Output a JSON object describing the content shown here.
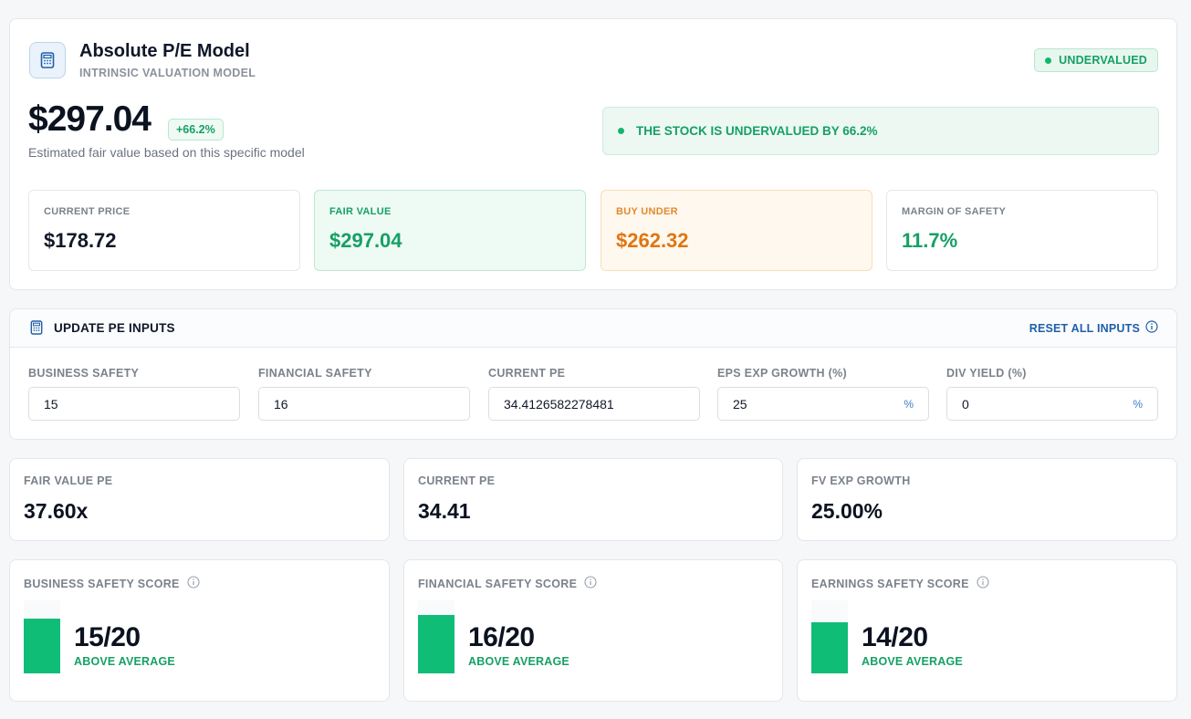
{
  "model": {
    "title": "Absolute P/E Model",
    "subtitle": "INTRINSIC VALUATION MODEL",
    "status": "UNDERVALUED",
    "fair_value": "$297.04",
    "change_pct": "+66.2%",
    "caption": "Estimated fair value based on this specific model",
    "verdict": "THE STOCK IS UNDERVALUED BY 66.2%",
    "icon": "calculator-icon"
  },
  "metrics": {
    "current_price": {
      "label": "CURRENT PRICE",
      "value": "$178.72"
    },
    "fair_value": {
      "label": "FAIR VALUE",
      "value": "$297.04"
    },
    "buy_under": {
      "label": "BUY UNDER",
      "value": "$262.32"
    },
    "margin_of_safety": {
      "label": "MARGIN OF SAFETY",
      "value": "11.7%"
    }
  },
  "inputs": {
    "title": "UPDATE PE INPUTS",
    "reset_label": "RESET ALL INPUTS",
    "fields": [
      {
        "label": "BUSINESS SAFETY",
        "value": "15",
        "unit": ""
      },
      {
        "label": "FINANCIAL SAFETY",
        "value": "16",
        "unit": ""
      },
      {
        "label": "CURRENT PE",
        "value": "34.4126582278481",
        "unit": ""
      },
      {
        "label": "EPS EXP GROWTH (%)",
        "value": "25",
        "unit": "%"
      },
      {
        "label": "DIV YIELD (%)",
        "value": "0",
        "unit": "%"
      }
    ]
  },
  "stats": {
    "fair_value_pe": {
      "label": "FAIR VALUE PE",
      "value": "37.60x"
    },
    "current_pe": {
      "label": "CURRENT PE",
      "value": "34.41"
    },
    "fv_exp_growth": {
      "label": "FV EXP GROWTH",
      "value": "25.00%"
    }
  },
  "scores": {
    "business": {
      "label": "BUSINESS SAFETY SCORE",
      "value": "15/20",
      "rating": "ABOVE AVERAGE",
      "score": 15,
      "max": 20
    },
    "financial": {
      "label": "FINANCIAL SAFETY SCORE",
      "value": "16/20",
      "rating": "ABOVE AVERAGE",
      "score": 16,
      "max": 20
    },
    "earnings": {
      "label": "EARNINGS SAFETY SCORE",
      "value": "14/20",
      "rating": "ABOVE AVERAGE",
      "score": 14,
      "max": 20
    }
  },
  "colors": {
    "positive": "#16a065",
    "warning": "#e07512",
    "link": "#1f5fa8",
    "score_fill": "#0fbd77"
  }
}
